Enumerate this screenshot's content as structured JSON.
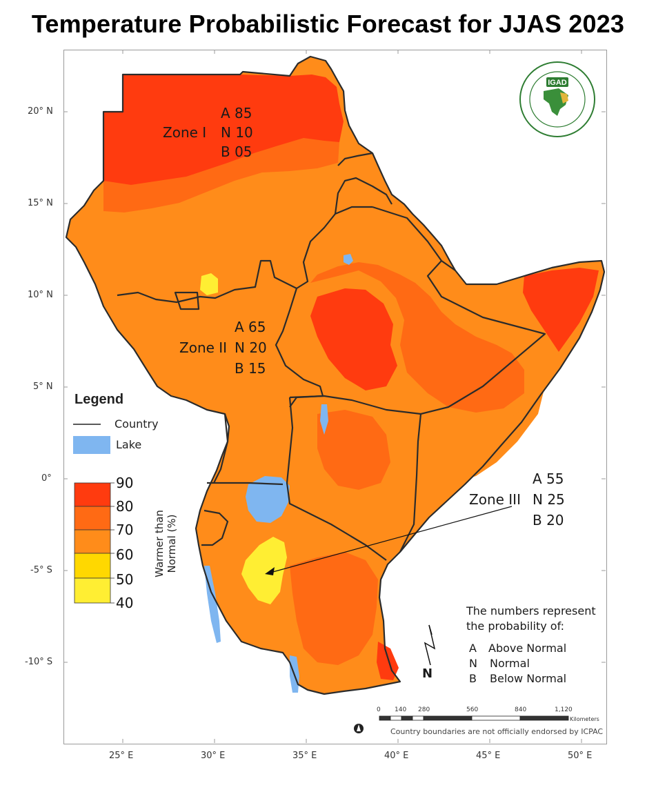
{
  "title": "Temperature Probabilistic Forecast for JJAS 2023",
  "axes": {
    "lat_labels": [
      "20° N",
      "15° N",
      "10° N",
      "5° N",
      "0°",
      "-5° S",
      "-10° S"
    ],
    "lon_labels": [
      "25° E",
      "30° E",
      "35° E",
      "40° E",
      "45° E",
      "50° E"
    ]
  },
  "zones": [
    {
      "name": "Zone I",
      "A": "A 85",
      "N": "N 10",
      "B": "B 05"
    },
    {
      "name": "Zone II",
      "A": "A 65",
      "N": "N 20",
      "B": "B 15"
    },
    {
      "name": "Zone III",
      "A": "A 55",
      "N": "N 25",
      "B": "B 20"
    }
  ],
  "legend": {
    "title": "Legend",
    "country_label": "Country",
    "lake_label": "Lake",
    "scale_values": [
      "90",
      "80",
      "70",
      "60",
      "50",
      "40"
    ],
    "scale_title_line1": "Warmer than",
    "scale_title_line2": "Normal (%)",
    "colors": {
      "c80_90": "#ff3b0f",
      "c70_80": "#ff6a14",
      "c60_70": "#ff8c1a",
      "c50_60": "#ffd800",
      "c40_50": "#ffee33",
      "lake": "#7fb6f0"
    }
  },
  "note": {
    "line1": "The numbers represent",
    "line2": "the probability of:",
    "items": [
      {
        "key": "A",
        "label": "Above Normal"
      },
      {
        "key": "N",
        "label": "Normal"
      },
      {
        "key": "B",
        "label": "Below Normal"
      }
    ]
  },
  "scalebar": {
    "ticks": [
      "0",
      "140",
      "280",
      "560",
      "840",
      "1,120"
    ],
    "unit": "Kilometers"
  },
  "north_arrow": "N",
  "disclaimer": "Country boundaries are not officially endorsed by ICPAC",
  "logo_text": "IGAD"
}
